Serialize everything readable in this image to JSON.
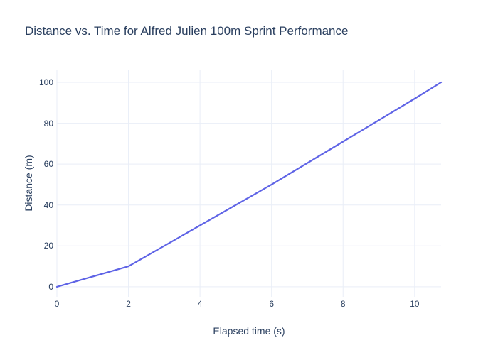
{
  "title": "Distance vs. Time for Alfred Julien 100m Sprint Performance",
  "chart_data": {
    "type": "line",
    "title": "Distance vs. Time for Alfred Julien 100m Sprint Performance",
    "xlabel": "Elapsed time (s)",
    "ylabel": "Distance (m)",
    "x": [
      0,
      2,
      4,
      6,
      8,
      10,
      10.74
    ],
    "y": [
      0,
      10,
      30,
      50,
      71,
      92,
      100
    ],
    "xticks": [
      0,
      2,
      4,
      6,
      8,
      10
    ],
    "yticks": [
      0,
      20,
      40,
      60,
      80,
      100
    ],
    "xlim": [
      0,
      10.74
    ],
    "ylim": [
      -4.9,
      105.9
    ],
    "grid": true,
    "legend": false,
    "colors": {
      "line": "#5f64e6",
      "grid": "#e9eef7",
      "font": "#2a3f5f",
      "background": "#ffffff"
    }
  }
}
